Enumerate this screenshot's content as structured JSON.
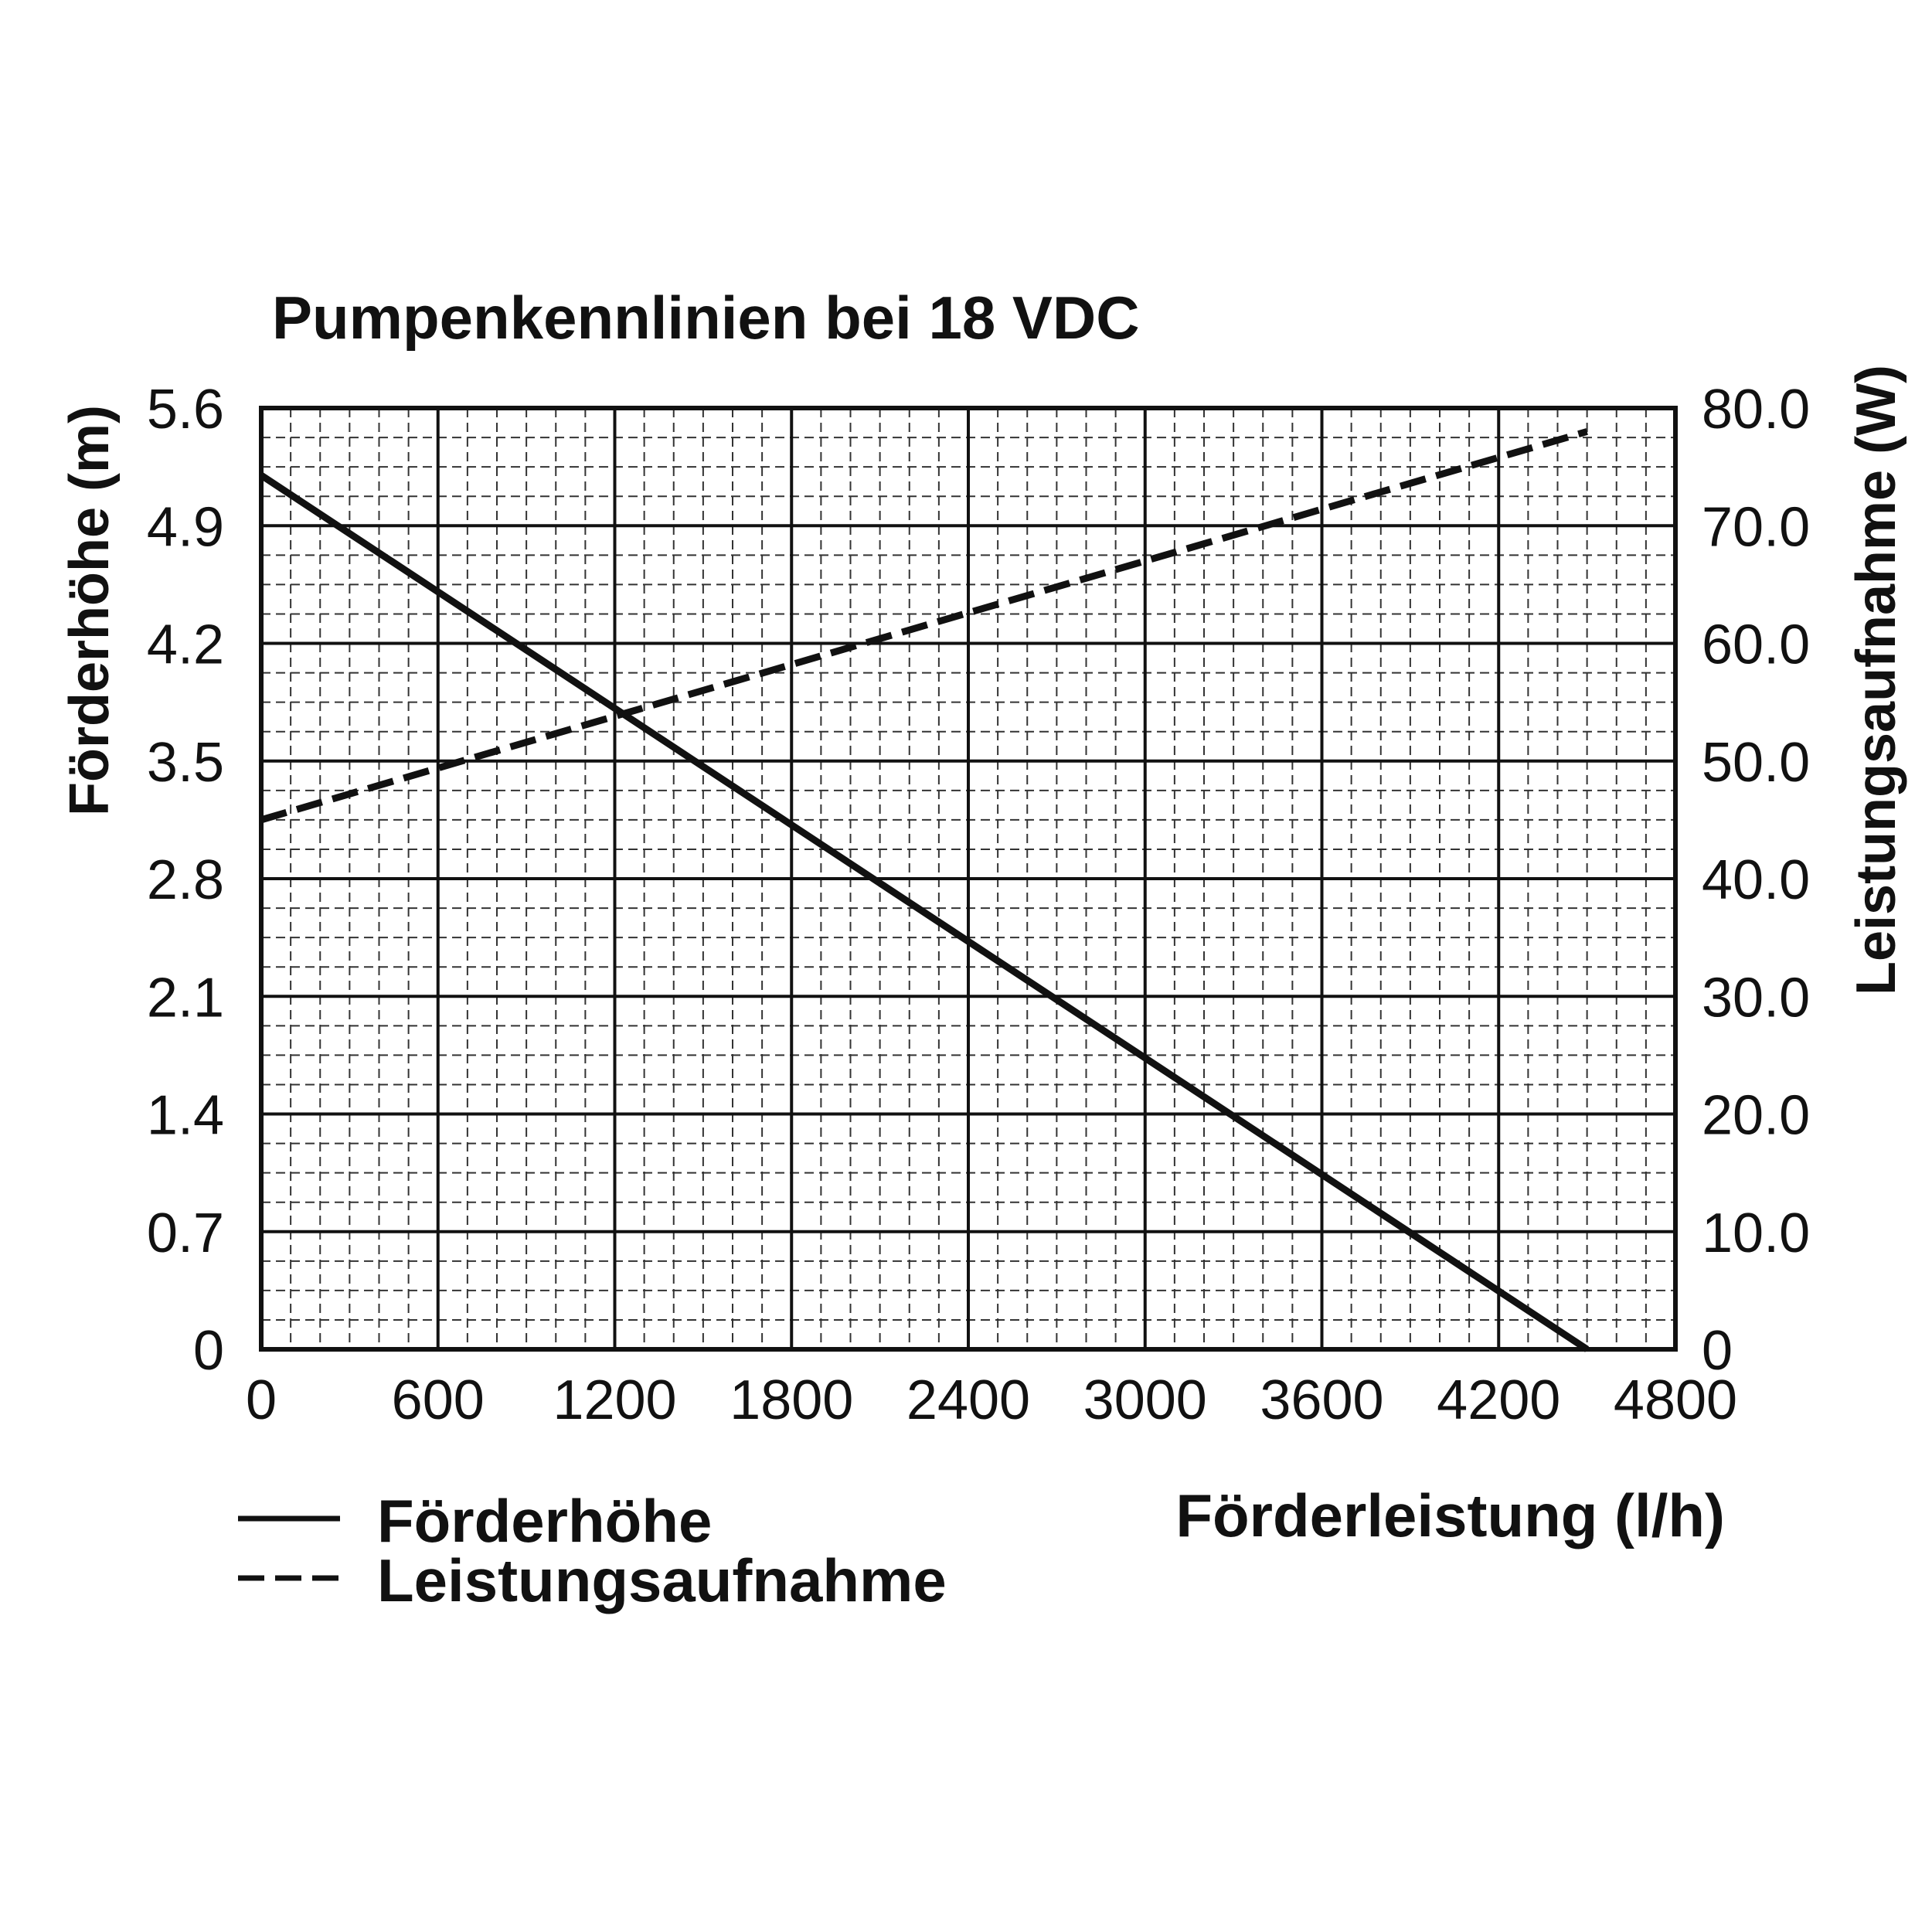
{
  "chart_data": {
    "type": "line",
    "title": "Pumpenkennlinien bei 18 VDC",
    "xlabel": "Förderleistung (l/h)",
    "ylabel_left": "Förderhöhe (m)",
    "ylabel_right": "Leistungsaufnahme (W)",
    "xlim": [
      0,
      4800
    ],
    "ylim_left": [
      0,
      5.6
    ],
    "ylim_right": [
      0,
      80
    ],
    "x_ticks": [
      "0",
      "600",
      "1200",
      "1800",
      "2400",
      "3000",
      "3600",
      "4200",
      "4800"
    ],
    "y_left_ticks": [
      "0",
      "0.7",
      "1.4",
      "2.1",
      "2.8",
      "3.5",
      "4.2",
      "4.9",
      "5.6"
    ],
    "y_right_ticks": [
      "0",
      "10.0",
      "20.0",
      "30.0",
      "40.0",
      "50.0",
      "60.0",
      "70.0",
      "80.0"
    ],
    "grid": true,
    "legend_position": "bottom-left",
    "series": [
      {
        "name": "Förderhöhe",
        "axis": "left",
        "line_style": "solid",
        "color": "#111111",
        "x": [
          0,
          4500
        ],
        "y": [
          5.2,
          0
        ]
      },
      {
        "name": "Leistungsaufnahme",
        "axis": "right",
        "line_style": "dashed",
        "color": "#111111",
        "x": [
          0,
          4500
        ],
        "y": [
          45,
          78
        ]
      }
    ]
  }
}
